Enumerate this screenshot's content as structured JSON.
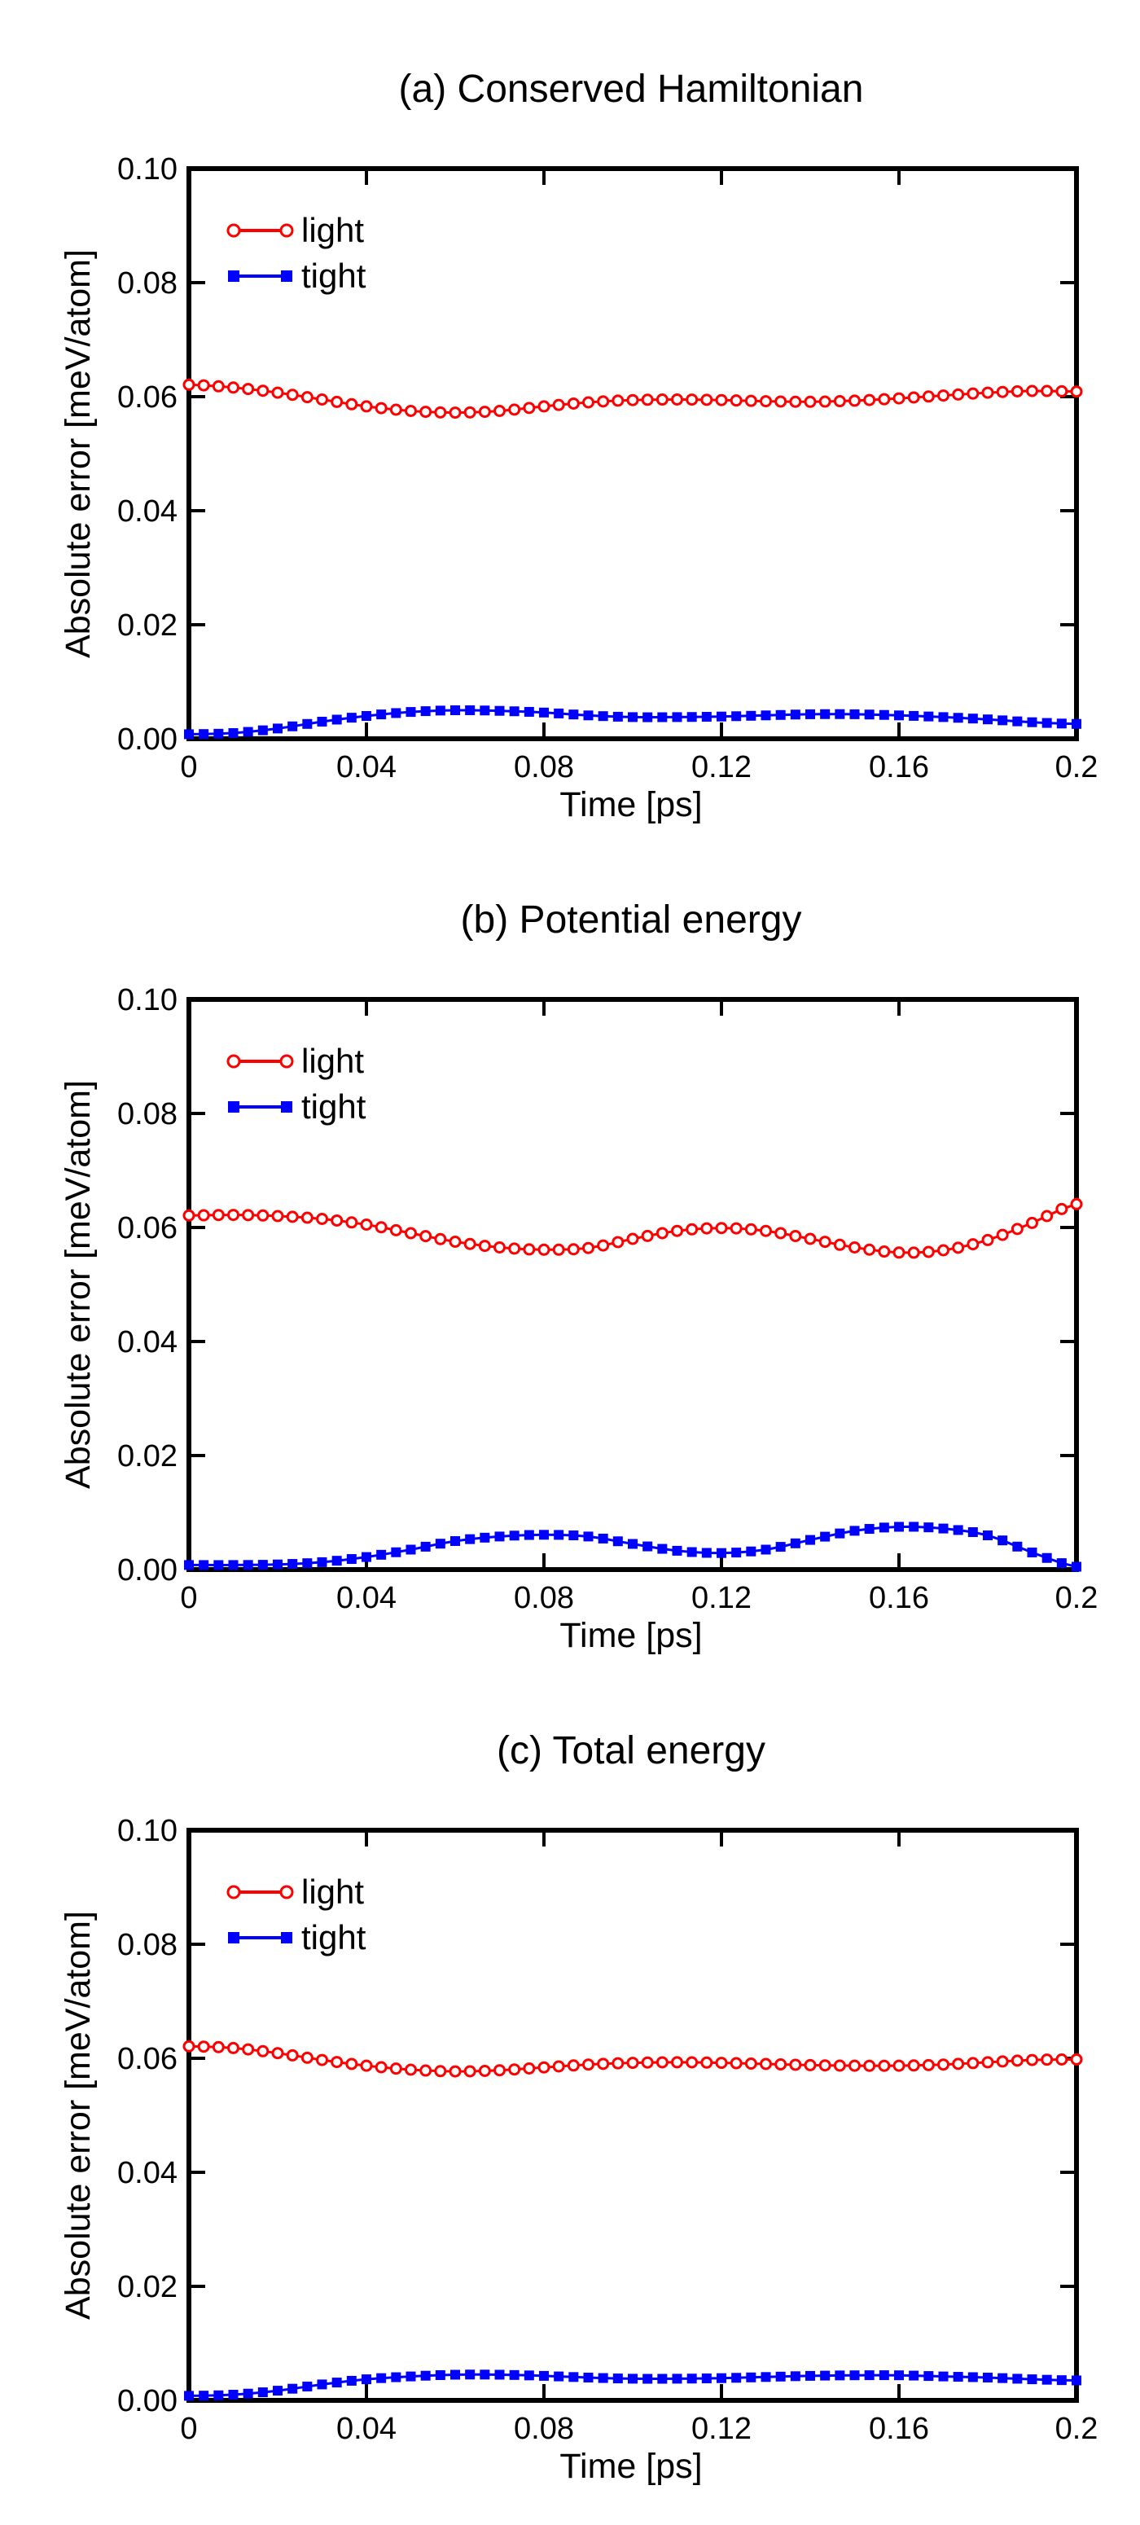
{
  "colors": {
    "light": "#ff0000",
    "tight": "#0000ff",
    "axes": "#000000"
  },
  "chart_data": [
    {
      "type": "line",
      "title": "(a) Conserved Hamiltonian",
      "xlabel": "Time [ps]",
      "ylabel": "Absolute error [meV/atom]",
      "xlim": [
        0,
        0.2
      ],
      "ylim": [
        0,
        0.1
      ],
      "xticks": [
        "0",
        "0.04",
        "0.08",
        "0.12",
        "0.16",
        "0.2"
      ],
      "yticks": [
        "0.00",
        "0.02",
        "0.04",
        "0.06",
        "0.08",
        "0.10"
      ],
      "grid": false,
      "legend": "top-left",
      "series": [
        {
          "name": "light",
          "marker": "open-circle",
          "x": [
            0,
            0.01,
            0.02,
            0.03,
            0.04,
            0.05,
            0.06,
            0.07,
            0.08,
            0.09,
            0.1,
            0.11,
            0.12,
            0.13,
            0.14,
            0.15,
            0.16,
            0.17,
            0.18,
            0.19,
            0.2
          ],
          "y": [
            0.0621,
            0.0616,
            0.0607,
            0.0595,
            0.0583,
            0.0575,
            0.0572,
            0.0575,
            0.0583,
            0.059,
            0.0594,
            0.0595,
            0.0594,
            0.0592,
            0.0591,
            0.0593,
            0.0597,
            0.0602,
            0.0607,
            0.061,
            0.0609
          ]
        },
        {
          "name": "tight",
          "marker": "filled-square",
          "x": [
            0,
            0.01,
            0.02,
            0.03,
            0.04,
            0.05,
            0.06,
            0.07,
            0.08,
            0.09,
            0.1,
            0.11,
            0.12,
            0.13,
            0.14,
            0.15,
            0.16,
            0.17,
            0.18,
            0.19,
            0.2
          ],
          "y": [
            0.0008,
            0.001,
            0.0018,
            0.003,
            0.004,
            0.0047,
            0.005,
            0.0049,
            0.0046,
            0.0041,
            0.0038,
            0.0038,
            0.0039,
            0.0041,
            0.0043,
            0.0043,
            0.0041,
            0.0038,
            0.0034,
            0.0029,
            0.0026
          ]
        }
      ]
    },
    {
      "type": "line",
      "title": "(b) Potential energy",
      "xlabel": "Time [ps]",
      "ylabel": "Absolute error [meV/atom]",
      "xlim": [
        0,
        0.2
      ],
      "ylim": [
        0,
        0.1
      ],
      "xticks": [
        "0",
        "0.04",
        "0.08",
        "0.12",
        "0.16",
        "0.2"
      ],
      "yticks": [
        "0.00",
        "0.02",
        "0.04",
        "0.06",
        "0.08",
        "0.10"
      ],
      "grid": false,
      "legend": "top-left",
      "series": [
        {
          "name": "light",
          "marker": "open-circle",
          "x": [
            0,
            0.01,
            0.02,
            0.03,
            0.04,
            0.05,
            0.06,
            0.07,
            0.08,
            0.09,
            0.1,
            0.11,
            0.12,
            0.13,
            0.14,
            0.15,
            0.16,
            0.17,
            0.18,
            0.19,
            0.2
          ],
          "y": [
            0.0621,
            0.0622,
            0.062,
            0.0615,
            0.0605,
            0.059,
            0.0575,
            0.0565,
            0.0561,
            0.0564,
            0.058,
            0.0594,
            0.0599,
            0.0594,
            0.058,
            0.0565,
            0.0556,
            0.056,
            0.0578,
            0.0608,
            0.0641
          ]
        },
        {
          "name": "tight",
          "marker": "filled-square",
          "x": [
            0,
            0.01,
            0.02,
            0.03,
            0.04,
            0.05,
            0.06,
            0.07,
            0.08,
            0.09,
            0.1,
            0.11,
            0.12,
            0.13,
            0.14,
            0.15,
            0.16,
            0.17,
            0.18,
            0.19,
            0.2
          ],
          "y": [
            0.0008,
            0.0008,
            0.0009,
            0.0013,
            0.0022,
            0.0035,
            0.005,
            0.0058,
            0.0061,
            0.0058,
            0.0045,
            0.0033,
            0.0029,
            0.0035,
            0.0052,
            0.0068,
            0.0075,
            0.0072,
            0.006,
            0.003,
            0.0005
          ]
        }
      ]
    },
    {
      "type": "line",
      "title": "(c) Total energy",
      "xlabel": "Time [ps]",
      "ylabel": "Absolute error [meV/atom]",
      "xlim": [
        0,
        0.2
      ],
      "ylim": [
        0,
        0.1
      ],
      "xticks": [
        "0",
        "0.04",
        "0.08",
        "0.12",
        "0.16",
        "0.2"
      ],
      "yticks": [
        "0.00",
        "0.02",
        "0.04",
        "0.06",
        "0.08",
        "0.10"
      ],
      "grid": false,
      "legend": "top-left",
      "series": [
        {
          "name": "light",
          "marker": "open-circle",
          "x": [
            0,
            0.01,
            0.02,
            0.03,
            0.04,
            0.05,
            0.06,
            0.07,
            0.08,
            0.09,
            0.1,
            0.11,
            0.12,
            0.13,
            0.14,
            0.15,
            0.16,
            0.17,
            0.18,
            0.19,
            0.2
          ],
          "y": [
            0.0621,
            0.0618,
            0.0609,
            0.0597,
            0.0587,
            0.058,
            0.0577,
            0.0579,
            0.0584,
            0.0589,
            0.0592,
            0.0593,
            0.0592,
            0.059,
            0.0588,
            0.0587,
            0.0587,
            0.0589,
            0.0593,
            0.0597,
            0.0598
          ]
        },
        {
          "name": "tight",
          "marker": "filled-square",
          "x": [
            0,
            0.01,
            0.02,
            0.03,
            0.04,
            0.05,
            0.06,
            0.07,
            0.08,
            0.09,
            0.1,
            0.11,
            0.12,
            0.13,
            0.14,
            0.15,
            0.16,
            0.17,
            0.18,
            0.19,
            0.2
          ],
          "y": [
            0.0008,
            0.001,
            0.0017,
            0.0028,
            0.0037,
            0.0042,
            0.0045,
            0.0045,
            0.0043,
            0.004,
            0.0038,
            0.0038,
            0.0039,
            0.0041,
            0.0043,
            0.0044,
            0.0044,
            0.0042,
            0.004,
            0.0037,
            0.0035
          ]
        }
      ]
    }
  ]
}
